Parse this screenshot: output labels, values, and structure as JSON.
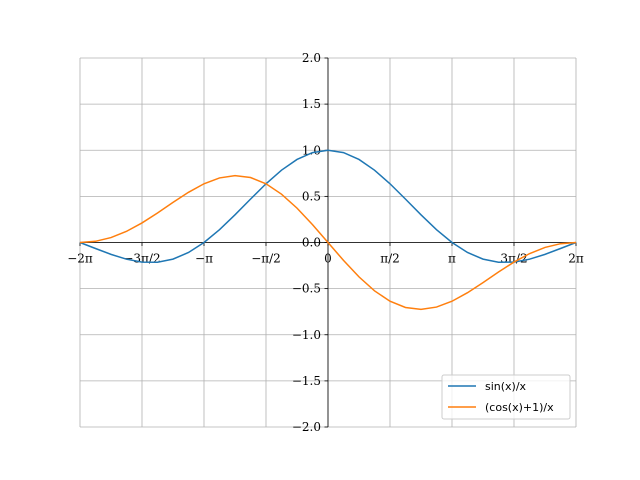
{
  "chart_data": {
    "type": "line",
    "x": [
      -6.2832,
      -5.8905,
      -5.4978,
      -5.1051,
      -4.7124,
      -4.3197,
      -3.927,
      -3.5343,
      -3.1416,
      -2.7489,
      -2.3562,
      -1.9635,
      -1.5708,
      -1.1781,
      -0.7854,
      -0.3927,
      0,
      0.3927,
      0.7854,
      1.1781,
      1.5708,
      1.9635,
      2.3562,
      2.7489,
      3.1416,
      3.5343,
      3.927,
      4.3197,
      4.7124,
      5.1051,
      5.4978,
      5.8905,
      6.2832
    ],
    "series": [
      {
        "name": "sin(x)/x",
        "color": "#1f77b4",
        "values": [
          0,
          -0.065,
          -0.1286,
          -0.181,
          -0.2122,
          -0.2139,
          -0.1801,
          -0.1083,
          0,
          0.1392,
          0.3001,
          0.4705,
          0.6366,
          0.7842,
          0.9003,
          0.9745,
          1,
          0.9745,
          0.9003,
          0.7842,
          0.6366,
          0.4705,
          0.3001,
          0.1392,
          0,
          -0.1083,
          -0.1801,
          -0.2139,
          -0.2122,
          -0.181,
          -0.1286,
          -0.065,
          0
        ]
      },
      {
        "name": "(cos(x)+1)/x",
        "color": "#ff7f0e",
        "values": [
          0,
          0.0129,
          0.0533,
          0.1209,
          0.2122,
          0.3201,
          0.4347,
          0.5443,
          0.6366,
          0.6999,
          0.7245,
          0.7042,
          0.6366,
          0.524,
          0.3729,
          0.1938,
          0,
          -0.1938,
          -0.3729,
          -0.524,
          -0.6366,
          -0.7042,
          -0.7245,
          -0.6999,
          -0.6366,
          -0.5443,
          -0.4347,
          -0.3201,
          -0.2122,
          -0.1209,
          -0.0533,
          -0.0129,
          0
        ]
      }
    ],
    "xlim": [
      -6.2832,
      6.2832
    ],
    "xticks": [
      {
        "value": -6.2832,
        "label": "−2π"
      },
      {
        "value": -4.7124,
        "label": "−3π/2"
      },
      {
        "value": -3.1416,
        "label": "−π"
      },
      {
        "value": -1.5708,
        "label": "−π/2"
      },
      0,
      {
        "value": 1.5708,
        "label": "π/2"
      },
      {
        "value": 3.1416,
        "label": "π"
      },
      {
        "value": 4.7124,
        "label": "3π/2"
      },
      {
        "value": 6.2832,
        "label": "2π"
      }
    ],
    "ylim": [
      -2,
      2
    ],
    "yticks": [
      {
        "value": -2,
        "label": "−2.0"
      },
      {
        "value": -1.5,
        "label": "−1.5"
      },
      {
        "value": -1,
        "label": "−1.0"
      },
      {
        "value": -0.5,
        "label": "−0.5"
      },
      {
        "value": 0,
        "label": "0.0"
      },
      {
        "value": 0.5,
        "label": "0.5"
      },
      {
        "value": 1,
        "label": "1.0"
      },
      {
        "value": 1.5,
        "label": "1.5"
      },
      {
        "value": 2,
        "label": "2.0"
      }
    ],
    "grid": true,
    "legend": "lower right"
  }
}
